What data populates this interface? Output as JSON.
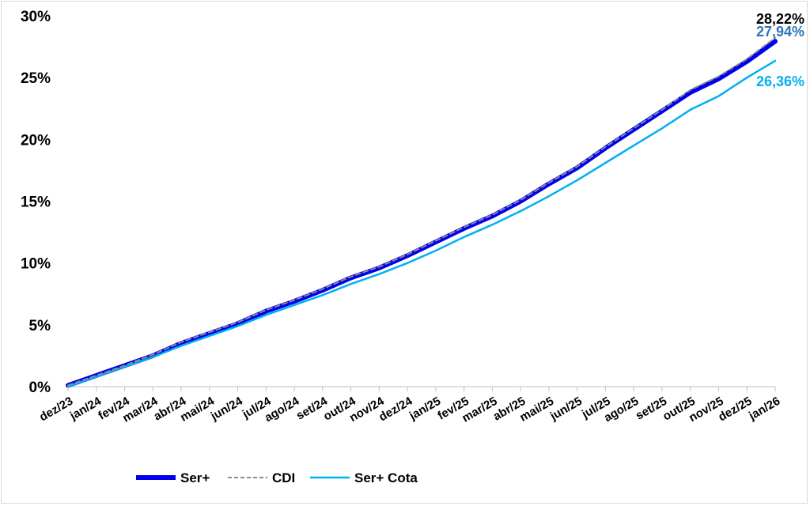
{
  "chart_data": {
    "type": "line",
    "categories": [
      "dez/23",
      "jan/24",
      "fev/24",
      "mar/24",
      "abr/24",
      "mai/24",
      "jun/24",
      "jul/24",
      "ago/24",
      "set/24",
      "out/24",
      "nov/24",
      "dez/24",
      "jan/25",
      "fev/25",
      "mar/25",
      "abr/25",
      "mai/25",
      "jun/25",
      "jul/25",
      "ago/25",
      "set/25",
      "out/25",
      "nov/25",
      "dez/25",
      "jan/26"
    ],
    "y_ticks": [
      "0%",
      "5%",
      "10%",
      "15%",
      "20%",
      "25%",
      "30%"
    ],
    "ylim": [
      0,
      30
    ],
    "grid": false,
    "legend_position": "bottom",
    "series": [
      {
        "name": "Ser+",
        "color": "#0000ee",
        "style": "thick",
        "values": [
          0.1,
          0.9,
          1.7,
          2.5,
          3.5,
          4.3,
          5.1,
          6.1,
          6.9,
          7.8,
          8.8,
          9.6,
          10.6,
          11.7,
          12.8,
          13.8,
          15.0,
          16.4,
          17.7,
          19.3,
          20.8,
          22.3,
          23.8,
          24.9,
          26.3,
          27.94
        ]
      },
      {
        "name": "CDI",
        "color": "#8c8c8c",
        "style": "dashed",
        "values": [
          0.1,
          0.9,
          1.7,
          2.6,
          3.6,
          4.4,
          5.2,
          6.2,
          7.0,
          7.9,
          8.9,
          9.7,
          10.7,
          11.8,
          12.9,
          13.9,
          15.1,
          16.5,
          17.8,
          19.4,
          20.9,
          22.4,
          24.0,
          25.1,
          26.5,
          28.22
        ]
      },
      {
        "name": "Ser+ Cota",
        "color": "#00b0f0",
        "style": "solid",
        "values": [
          0.0,
          0.8,
          1.6,
          2.4,
          3.3,
          4.1,
          4.9,
          5.8,
          6.6,
          7.4,
          8.3,
          9.1,
          10.0,
          11.0,
          12.1,
          13.1,
          14.2,
          15.4,
          16.7,
          18.1,
          19.5,
          20.9,
          22.4,
          23.5,
          25.0,
          26.36
        ]
      }
    ],
    "end_labels": [
      {
        "series": "CDI",
        "text": "28,22%",
        "color": "#000000"
      },
      {
        "series": "Ser+",
        "text": "27,94%",
        "color": "#2e75b6"
      },
      {
        "series": "Ser+ Cota",
        "text": "26,36%",
        "color": "#00b0f0"
      }
    ]
  }
}
